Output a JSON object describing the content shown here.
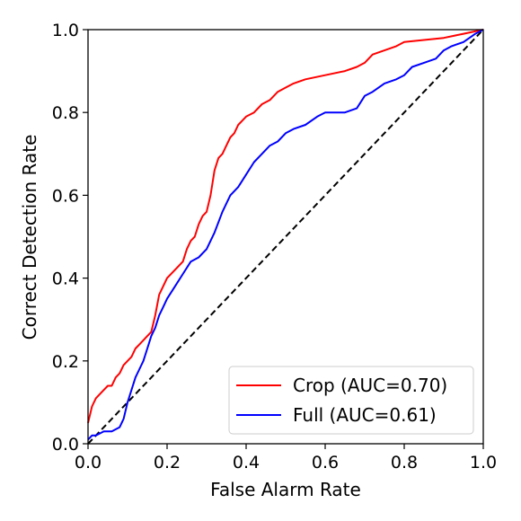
{
  "chart_data": {
    "type": "line",
    "xlabel": "False Alarm Rate",
    "ylabel": "Correct Detection Rate",
    "xlim": [
      0.0,
      1.0
    ],
    "ylim": [
      0.0,
      1.0
    ],
    "xticks": [
      "0.0",
      "0.2",
      "0.4",
      "0.6",
      "0.8",
      "1.0"
    ],
    "yticks": [
      "0.0",
      "0.2",
      "0.4",
      "0.6",
      "0.8",
      "1.0"
    ],
    "grid": false,
    "legend_position": "lower-right",
    "series": [
      {
        "name": "Crop (AUC=0.70)",
        "color": "#ff0000",
        "x": [
          0.0,
          0.005,
          0.01,
          0.02,
          0.03,
          0.04,
          0.05,
          0.06,
          0.07,
          0.08,
          0.09,
          0.1,
          0.11,
          0.12,
          0.13,
          0.14,
          0.15,
          0.16,
          0.17,
          0.18,
          0.19,
          0.2,
          0.22,
          0.24,
          0.25,
          0.26,
          0.27,
          0.28,
          0.29,
          0.3,
          0.31,
          0.32,
          0.33,
          0.34,
          0.35,
          0.36,
          0.37,
          0.38,
          0.39,
          0.4,
          0.42,
          0.44,
          0.46,
          0.48,
          0.5,
          0.52,
          0.55,
          0.6,
          0.65,
          0.68,
          0.7,
          0.72,
          0.75,
          0.78,
          0.8,
          0.85,
          0.9,
          0.95,
          1.0
        ],
        "y": [
          0.05,
          0.07,
          0.09,
          0.11,
          0.12,
          0.13,
          0.14,
          0.14,
          0.16,
          0.17,
          0.19,
          0.2,
          0.21,
          0.23,
          0.24,
          0.25,
          0.26,
          0.27,
          0.31,
          0.36,
          0.38,
          0.4,
          0.42,
          0.44,
          0.47,
          0.49,
          0.5,
          0.53,
          0.55,
          0.56,
          0.6,
          0.66,
          0.69,
          0.7,
          0.72,
          0.74,
          0.75,
          0.77,
          0.78,
          0.79,
          0.8,
          0.82,
          0.83,
          0.85,
          0.86,
          0.87,
          0.88,
          0.89,
          0.9,
          0.91,
          0.92,
          0.94,
          0.95,
          0.96,
          0.97,
          0.975,
          0.98,
          0.99,
          1.0
        ]
      },
      {
        "name": "Full (AUC=0.61)",
        "color": "#0000ff",
        "x": [
          0.0,
          0.01,
          0.02,
          0.04,
          0.06,
          0.08,
          0.09,
          0.1,
          0.11,
          0.12,
          0.13,
          0.14,
          0.15,
          0.16,
          0.17,
          0.18,
          0.19,
          0.2,
          0.22,
          0.24,
          0.26,
          0.28,
          0.3,
          0.32,
          0.34,
          0.36,
          0.37,
          0.38,
          0.4,
          0.42,
          0.44,
          0.46,
          0.48,
          0.5,
          0.52,
          0.55,
          0.58,
          0.6,
          0.62,
          0.65,
          0.68,
          0.7,
          0.72,
          0.75,
          0.78,
          0.8,
          0.82,
          0.85,
          0.88,
          0.9,
          0.92,
          0.95,
          0.98,
          1.0
        ],
        "y": [
          0.01,
          0.02,
          0.02,
          0.03,
          0.03,
          0.04,
          0.06,
          0.1,
          0.13,
          0.16,
          0.18,
          0.2,
          0.23,
          0.26,
          0.28,
          0.31,
          0.33,
          0.35,
          0.38,
          0.41,
          0.44,
          0.45,
          0.47,
          0.51,
          0.56,
          0.6,
          0.61,
          0.62,
          0.65,
          0.68,
          0.7,
          0.72,
          0.73,
          0.75,
          0.76,
          0.77,
          0.79,
          0.8,
          0.8,
          0.8,
          0.81,
          0.84,
          0.85,
          0.87,
          0.88,
          0.89,
          0.91,
          0.92,
          0.93,
          0.95,
          0.96,
          0.97,
          0.99,
          1.0
        ]
      }
    ],
    "reference_line": {
      "x": [
        0.0,
        1.0
      ],
      "y": [
        0.0,
        1.0
      ],
      "color": "#000000",
      "style": "dashed"
    }
  }
}
